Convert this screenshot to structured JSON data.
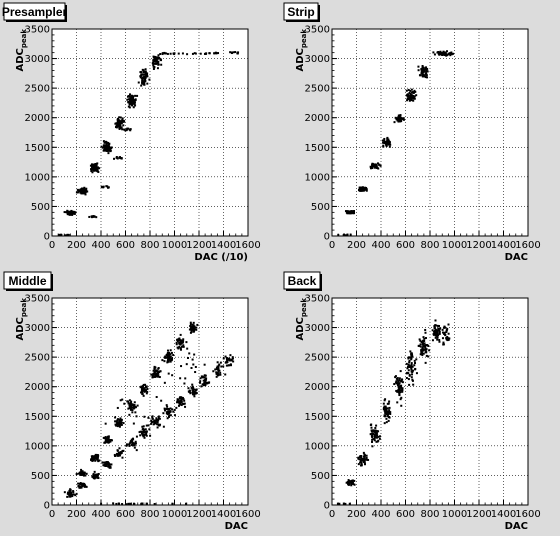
{
  "chart_data": [
    {
      "type": "scatter",
      "title": "Presampler",
      "xlabel": "DAC (/10)",
      "ylabel": "ADC",
      "ylabel_sub": "peak",
      "xlim": [
        0,
        1600
      ],
      "ylim": [
        0,
        3500
      ],
      "xticks": [
        0,
        200,
        400,
        600,
        800,
        1000,
        1200,
        1400,
        1600
      ],
      "yticks": [
        500,
        1000,
        1500,
        2000,
        2500,
        3000,
        3500
      ],
      "grid": true,
      "clusters": [
        {
          "x": 150,
          "y": 390,
          "n": 60,
          "dx": 40,
          "dy": 35
        },
        {
          "x": 250,
          "y": 760,
          "n": 60,
          "dx": 40,
          "dy": 50
        },
        {
          "x": 350,
          "y": 1150,
          "n": 60,
          "dx": 40,
          "dy": 70
        },
        {
          "x": 450,
          "y": 1500,
          "n": 60,
          "dx": 40,
          "dy": 90
        },
        {
          "x": 550,
          "y": 1900,
          "n": 60,
          "dx": 40,
          "dy": 110
        },
        {
          "x": 650,
          "y": 2270,
          "n": 60,
          "dx": 40,
          "dy": 140
        },
        {
          "x": 750,
          "y": 2680,
          "n": 60,
          "dx": 40,
          "dy": 160
        },
        {
          "x": 850,
          "y": 2950,
          "n": 50,
          "dx": 40,
          "dy": 120
        },
        {
          "x": 340,
          "y": 330,
          "n": 10,
          "dx": 40,
          "dy": 15
        },
        {
          "x": 440,
          "y": 830,
          "n": 10,
          "dx": 30,
          "dy": 20
        },
        {
          "x": 540,
          "y": 1320,
          "n": 10,
          "dx": 30,
          "dy": 25
        },
        {
          "x": 620,
          "y": 1800,
          "n": 10,
          "dx": 30,
          "dy": 25
        },
        {
          "x": 100,
          "y": 20,
          "n": 8,
          "dx": 60,
          "dy": 10
        },
        {
          "x": 1000,
          "y": 3080,
          "n": 15,
          "dx": 150,
          "dy": 20
        },
        {
          "x": 1300,
          "y": 3090,
          "n": 15,
          "dx": 150,
          "dy": 20
        },
        {
          "x": 1500,
          "y": 3100,
          "n": 8,
          "dx": 60,
          "dy": 20
        }
      ]
    },
    {
      "type": "scatter",
      "title": "Strip",
      "xlabel": "DAC",
      "ylabel": "ADC",
      "ylabel_sub": "peak",
      "xlim": [
        0,
        1600
      ],
      "ylim": [
        0,
        3500
      ],
      "xticks": [
        0,
        200,
        400,
        600,
        800,
        1000,
        1200,
        1400,
        1600
      ],
      "yticks": [
        500,
        1000,
        1500,
        2000,
        2500,
        3000,
        3500
      ],
      "grid": true,
      "clusters": [
        {
          "x": 150,
          "y": 400,
          "n": 50,
          "dx": 40,
          "dy": 30
        },
        {
          "x": 250,
          "y": 790,
          "n": 50,
          "dx": 40,
          "dy": 40
        },
        {
          "x": 350,
          "y": 1190,
          "n": 50,
          "dx": 40,
          "dy": 50
        },
        {
          "x": 450,
          "y": 1580,
          "n": 50,
          "dx": 40,
          "dy": 60
        },
        {
          "x": 550,
          "y": 1980,
          "n": 50,
          "dx": 40,
          "dy": 80
        },
        {
          "x": 650,
          "y": 2380,
          "n": 50,
          "dx": 40,
          "dy": 100
        },
        {
          "x": 750,
          "y": 2780,
          "n": 50,
          "dx": 40,
          "dy": 110
        },
        {
          "x": 900,
          "y": 3080,
          "n": 60,
          "dx": 90,
          "dy": 40
        },
        {
          "x": 100,
          "y": 20,
          "n": 8,
          "dx": 60,
          "dy": 10
        }
      ]
    },
    {
      "type": "scatter",
      "title": "Middle",
      "xlabel": "DAC",
      "ylabel": "ADC",
      "ylabel_sub": "peak",
      "xlim": [
        0,
        1600
      ],
      "ylim": [
        0,
        3500
      ],
      "xticks": [
        0,
        200,
        400,
        600,
        800,
        1000,
        1200,
        1400,
        1600
      ],
      "yticks": [
        500,
        1000,
        1500,
        2000,
        2500,
        3000,
        3500
      ],
      "grid": true,
      "clusters": [
        {
          "x": 150,
          "y": 200,
          "n": 30,
          "dx": 40,
          "dy": 80
        },
        {
          "x": 250,
          "y": 530,
          "n": 40,
          "dx": 40,
          "dy": 50
        },
        {
          "x": 350,
          "y": 800,
          "n": 40,
          "dx": 40,
          "dy": 60
        },
        {
          "x": 450,
          "y": 1100,
          "n": 40,
          "dx": 40,
          "dy": 80
        },
        {
          "x": 550,
          "y": 1400,
          "n": 40,
          "dx": 40,
          "dy": 90
        },
        {
          "x": 650,
          "y": 1680,
          "n": 40,
          "dx": 40,
          "dy": 100
        },
        {
          "x": 750,
          "y": 1950,
          "n": 40,
          "dx": 40,
          "dy": 110
        },
        {
          "x": 850,
          "y": 2250,
          "n": 40,
          "dx": 40,
          "dy": 110
        },
        {
          "x": 950,
          "y": 2500,
          "n": 40,
          "dx": 40,
          "dy": 120
        },
        {
          "x": 1050,
          "y": 2750,
          "n": 40,
          "dx": 40,
          "dy": 120
        },
        {
          "x": 1150,
          "y": 3000,
          "n": 40,
          "dx": 40,
          "dy": 90
        },
        {
          "x": 250,
          "y": 330,
          "n": 30,
          "dx": 40,
          "dy": 50
        },
        {
          "x": 350,
          "y": 500,
          "n": 30,
          "dx": 40,
          "dy": 60
        },
        {
          "x": 450,
          "y": 680,
          "n": 30,
          "dx": 40,
          "dy": 70
        },
        {
          "x": 550,
          "y": 870,
          "n": 30,
          "dx": 40,
          "dy": 80
        },
        {
          "x": 650,
          "y": 1050,
          "n": 30,
          "dx": 40,
          "dy": 90
        },
        {
          "x": 750,
          "y": 1230,
          "n": 30,
          "dx": 40,
          "dy": 100
        },
        {
          "x": 850,
          "y": 1400,
          "n": 30,
          "dx": 40,
          "dy": 100
        },
        {
          "x": 950,
          "y": 1580,
          "n": 30,
          "dx": 40,
          "dy": 110
        },
        {
          "x": 1050,
          "y": 1750,
          "n": 30,
          "dx": 40,
          "dy": 110
        },
        {
          "x": 1150,
          "y": 1930,
          "n": 30,
          "dx": 40,
          "dy": 110
        },
        {
          "x": 1250,
          "y": 2100,
          "n": 30,
          "dx": 40,
          "dy": 110
        },
        {
          "x": 1350,
          "y": 2280,
          "n": 30,
          "dx": 40,
          "dy": 110
        },
        {
          "x": 1450,
          "y": 2450,
          "n": 30,
          "dx": 40,
          "dy": 110
        },
        {
          "x": 700,
          "y": 1500,
          "n": 25,
          "dx": 300,
          "dy": 500
        },
        {
          "x": 1100,
          "y": 2400,
          "n": 25,
          "dx": 300,
          "dy": 500
        },
        {
          "x": 700,
          "y": 20,
          "n": 20,
          "dx": 500,
          "dy": 10
        }
      ]
    },
    {
      "type": "scatter",
      "title": "Back",
      "xlabel": "DAC",
      "ylabel": "ADC",
      "ylabel_sub": "peak",
      "xlim": [
        0,
        1600
      ],
      "ylim": [
        0,
        3500
      ],
      "xticks": [
        0,
        200,
        400,
        600,
        800,
        1000,
        1200,
        1400,
        1600
      ],
      "yticks": [
        500,
        1000,
        1500,
        2000,
        2500,
        3000,
        3500
      ],
      "grid": true,
      "clusters": [
        {
          "x": 150,
          "y": 380,
          "n": 40,
          "dx": 40,
          "dy": 60
        },
        {
          "x": 250,
          "y": 770,
          "n": 45,
          "dx": 40,
          "dy": 110
        },
        {
          "x": 350,
          "y": 1200,
          "n": 50,
          "dx": 40,
          "dy": 180
        },
        {
          "x": 450,
          "y": 1600,
          "n": 50,
          "dx": 40,
          "dy": 220
        },
        {
          "x": 550,
          "y": 2000,
          "n": 55,
          "dx": 40,
          "dy": 260
        },
        {
          "x": 650,
          "y": 2350,
          "n": 55,
          "dx": 40,
          "dy": 300
        },
        {
          "x": 750,
          "y": 2700,
          "n": 55,
          "dx": 40,
          "dy": 280
        },
        {
          "x": 850,
          "y": 2900,
          "n": 50,
          "dx": 40,
          "dy": 180
        },
        {
          "x": 930,
          "y": 2870,
          "n": 35,
          "dx": 40,
          "dy": 160
        },
        {
          "x": 100,
          "y": 20,
          "n": 6,
          "dx": 60,
          "dy": 10
        }
      ]
    }
  ]
}
